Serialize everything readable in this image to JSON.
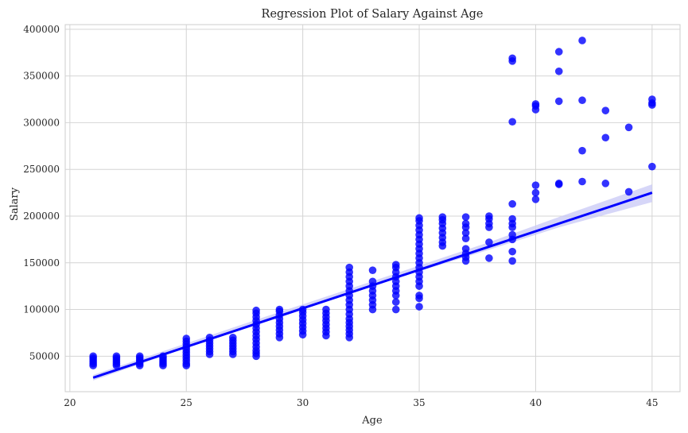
{
  "chart_data": {
    "type": "scatter",
    "title": "Regression Plot of Salary Against Age",
    "xlabel": "Age",
    "ylabel": "Salary",
    "xlim": [
      19.8,
      46.2
    ],
    "ylim": [
      12000,
      405000
    ],
    "xticks": [
      20,
      25,
      30,
      35,
      40,
      45
    ],
    "yticks": [
      50000,
      100000,
      150000,
      200000,
      250000,
      300000,
      350000,
      400000
    ],
    "grid": true,
    "point_color": "#0000ff",
    "line_color": "#0000ff",
    "band_color": "#c8c8f5",
    "points": [
      [
        21,
        40000
      ],
      [
        21,
        42000
      ],
      [
        21,
        44000
      ],
      [
        21,
        46000
      ],
      [
        21,
        48000
      ],
      [
        21,
        50000
      ],
      [
        22,
        40000
      ],
      [
        22,
        42000
      ],
      [
        22,
        44000
      ],
      [
        22,
        46000
      ],
      [
        22,
        48000
      ],
      [
        22,
        50000
      ],
      [
        23,
        40000
      ],
      [
        23,
        42000
      ],
      [
        23,
        44000
      ],
      [
        23,
        46000
      ],
      [
        23,
        48000
      ],
      [
        23,
        50000
      ],
      [
        24,
        40000
      ],
      [
        24,
        42000
      ],
      [
        24,
        44000
      ],
      [
        24,
        46000
      ],
      [
        24,
        48000
      ],
      [
        24,
        50000
      ],
      [
        25,
        40000
      ],
      [
        25,
        42000
      ],
      [
        25,
        45000
      ],
      [
        25,
        48000
      ],
      [
        25,
        51000
      ],
      [
        25,
        54000
      ],
      [
        25,
        57000
      ],
      [
        25,
        60000
      ],
      [
        25,
        63000
      ],
      [
        25,
        66000
      ],
      [
        25,
        69000
      ],
      [
        26,
        52000
      ],
      [
        26,
        55000
      ],
      [
        26,
        58000
      ],
      [
        26,
        61000
      ],
      [
        26,
        64000
      ],
      [
        26,
        67000
      ],
      [
        26,
        70000
      ],
      [
        27,
        52000
      ],
      [
        27,
        55000
      ],
      [
        27,
        58000
      ],
      [
        27,
        61000
      ],
      [
        27,
        64000
      ],
      [
        27,
        67000
      ],
      [
        27,
        70000
      ],
      [
        28,
        50000
      ],
      [
        28,
        53000
      ],
      [
        28,
        56000
      ],
      [
        28,
        60000
      ],
      [
        28,
        64000
      ],
      [
        28,
        68000
      ],
      [
        28,
        72000
      ],
      [
        28,
        76000
      ],
      [
        28,
        80000
      ],
      [
        28,
        84000
      ],
      [
        28,
        88000
      ],
      [
        28,
        92000
      ],
      [
        28,
        96000
      ],
      [
        28,
        99000
      ],
      [
        29,
        70000
      ],
      [
        29,
        74000
      ],
      [
        29,
        78000
      ],
      [
        29,
        82000
      ],
      [
        29,
        86000
      ],
      [
        29,
        90000
      ],
      [
        29,
        94000
      ],
      [
        29,
        98000
      ],
      [
        29,
        100000
      ],
      [
        30,
        73000
      ],
      [
        30,
        77000
      ],
      [
        30,
        81000
      ],
      [
        30,
        85000
      ],
      [
        30,
        89000
      ],
      [
        30,
        93000
      ],
      [
        30,
        97000
      ],
      [
        30,
        100000
      ],
      [
        31,
        72000
      ],
      [
        31,
        76000
      ],
      [
        31,
        80000
      ],
      [
        31,
        84000
      ],
      [
        31,
        88000
      ],
      [
        31,
        92000
      ],
      [
        31,
        96000
      ],
      [
        31,
        100000
      ],
      [
        32,
        70000
      ],
      [
        32,
        74000
      ],
      [
        32,
        78000
      ],
      [
        32,
        82000
      ],
      [
        32,
        86000
      ],
      [
        32,
        90000
      ],
      [
        32,
        95000
      ],
      [
        32,
        100000
      ],
      [
        32,
        105000
      ],
      [
        32,
        110000
      ],
      [
        32,
        115000
      ],
      [
        32,
        120000
      ],
      [
        32,
        125000
      ],
      [
        32,
        130000
      ],
      [
        32,
        135000
      ],
      [
        32,
        140000
      ],
      [
        32,
        145000
      ],
      [
        33,
        100000
      ],
      [
        33,
        105000
      ],
      [
        33,
        110000
      ],
      [
        33,
        115000
      ],
      [
        33,
        120000
      ],
      [
        33,
        125000
      ],
      [
        33,
        130000
      ],
      [
        33,
        142000
      ],
      [
        34,
        100000
      ],
      [
        34,
        108000
      ],
      [
        34,
        115000
      ],
      [
        34,
        120000
      ],
      [
        34,
        125000
      ],
      [
        34,
        130000
      ],
      [
        34,
        135000
      ],
      [
        34,
        140000
      ],
      [
        34,
        145000
      ],
      [
        34,
        148000
      ],
      [
        35,
        103000
      ],
      [
        35,
        112000
      ],
      [
        35,
        115000
      ],
      [
        35,
        125000
      ],
      [
        35,
        130000
      ],
      [
        35,
        135000
      ],
      [
        35,
        140000
      ],
      [
        35,
        145000
      ],
      [
        35,
        150000
      ],
      [
        35,
        155000
      ],
      [
        35,
        160000
      ],
      [
        35,
        165000
      ],
      [
        35,
        170000
      ],
      [
        35,
        175000
      ],
      [
        35,
        180000
      ],
      [
        35,
        185000
      ],
      [
        35,
        190000
      ],
      [
        35,
        195000
      ],
      [
        35,
        198000
      ],
      [
        36,
        168000
      ],
      [
        36,
        172000
      ],
      [
        36,
        177000
      ],
      [
        36,
        182000
      ],
      [
        36,
        187000
      ],
      [
        36,
        192000
      ],
      [
        36,
        196000
      ],
      [
        36,
        199000
      ],
      [
        37,
        152000
      ],
      [
        37,
        156000
      ],
      [
        37,
        160000
      ],
      [
        37,
        165000
      ],
      [
        37,
        176000
      ],
      [
        37,
        182000
      ],
      [
        37,
        188000
      ],
      [
        37,
        192000
      ],
      [
        37,
        199000
      ],
      [
        38,
        155000
      ],
      [
        38,
        172000
      ],
      [
        38,
        188000
      ],
      [
        38,
        192000
      ],
      [
        38,
        197000
      ],
      [
        38,
        200000
      ],
      [
        39,
        152000
      ],
      [
        39,
        162000
      ],
      [
        39,
        175000
      ],
      [
        39,
        180000
      ],
      [
        39,
        188000
      ],
      [
        39,
        192000
      ],
      [
        39,
        197000
      ],
      [
        39,
        213000
      ],
      [
        39,
        301000
      ],
      [
        39,
        366000
      ],
      [
        39,
        369000
      ],
      [
        40,
        218000
      ],
      [
        40,
        225000
      ],
      [
        40,
        233000
      ],
      [
        40,
        314000
      ],
      [
        40,
        318000
      ],
      [
        40,
        320000
      ],
      [
        41,
        234000
      ],
      [
        41,
        235000
      ],
      [
        41,
        323000
      ],
      [
        41,
        355000
      ],
      [
        41,
        376000
      ],
      [
        42,
        237000
      ],
      [
        42,
        270000
      ],
      [
        42,
        324000
      ],
      [
        42,
        388000
      ],
      [
        43,
        235000
      ],
      [
        43,
        284000
      ],
      [
        43,
        313000
      ],
      [
        44,
        226000
      ],
      [
        44,
        295000
      ],
      [
        45,
        253000
      ],
      [
        45,
        319000
      ],
      [
        45,
        321000
      ],
      [
        45,
        325000
      ]
    ],
    "regression": {
      "x": [
        21,
        45
      ],
      "y": [
        27000,
        225000
      ]
    },
    "confidence_band": {
      "x": [
        21,
        28,
        32,
        35,
        38,
        41,
        45
      ],
      "upper": [
        30000,
        89000,
        122000,
        147000,
        172000,
        199000,
        234000
      ],
      "lower": [
        24000,
        85000,
        118000,
        141000,
        164000,
        188000,
        215000
      ]
    }
  }
}
